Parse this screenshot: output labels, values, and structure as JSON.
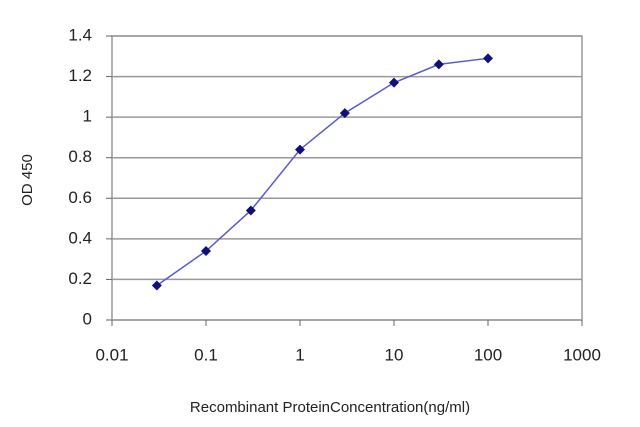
{
  "chart_data": {
    "type": "line",
    "x_label": "Recombinant ProteinConcentration(ng/ml)",
    "y_label": "OD 450",
    "x": [
      0.03,
      0.1,
      0.3,
      1,
      3,
      10,
      30,
      100
    ],
    "series": [
      {
        "color": "#5a5ad0",
        "marker_color": "#10107a",
        "values": [
          0.17,
          0.34,
          0.54,
          0.84,
          1.02,
          1.17,
          1.26,
          1.29
        ]
      }
    ],
    "xlim": [
      0.01,
      1000
    ],
    "xticks": [
      0.01,
      0.1,
      1,
      10,
      100,
      1000
    ],
    "xscale": "log",
    "ylim": [
      0,
      1.4
    ],
    "yticks": [
      0,
      0.2,
      0.4,
      0.6,
      0.8,
      1,
      1.2,
      1.4
    ],
    "grid": true
  }
}
